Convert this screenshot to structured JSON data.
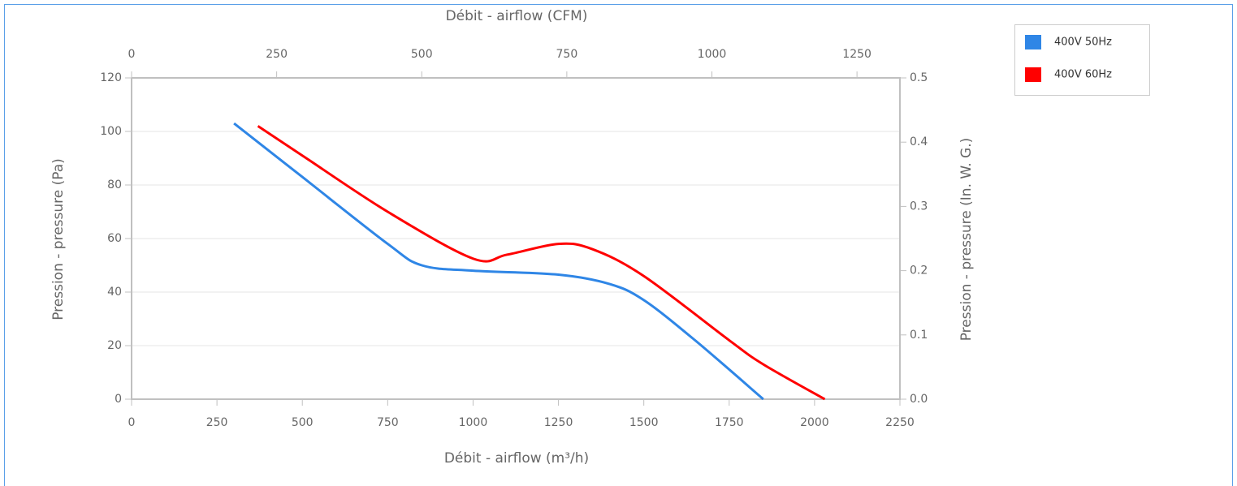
{
  "chart_data": {
    "type": "line",
    "x_label": "Débit - airflow (m³/h)",
    "x2_label": "Débit - airflow (CFM)",
    "y_label": "Pression - pressure (Pa)",
    "y2_label": "Pression - pressure (In. W. G.)",
    "xlim": [
      0,
      2250
    ],
    "xticks": [
      0,
      250,
      500,
      750,
      1000,
      1250,
      1500,
      1750,
      2000,
      2250
    ],
    "x2lim": [
      0,
      1324
    ],
    "x2ticks": [
      0,
      250,
      500,
      750,
      1000,
      1250
    ],
    "ylim": [
      0,
      120
    ],
    "yticks": [
      0,
      20,
      40,
      60,
      80,
      100,
      120
    ],
    "y2lim": [
      0,
      0.5
    ],
    "y2ticks": [
      {
        "value": 0,
        "label": "0.0"
      },
      0.1,
      0.2,
      0.3,
      0.4,
      0.5
    ],
    "grid": true,
    "legend": "right",
    "series": [
      {
        "name": "400V 50Hz",
        "color": "#2f86e6",
        "x": [
          300,
          500,
          750,
          850,
          1000,
          1250,
          1400,
          1500,
          1650,
          1850
        ],
        "values": [
          103,
          83,
          58,
          50,
          48,
          46.5,
          43,
          37,
          22,
          0
        ]
      },
      {
        "name": "400V 60Hz",
        "color": "#ff0000",
        "x": [
          370,
          500,
          750,
          1000,
          1100,
          1250,
          1350,
          1500,
          1750,
          1850,
          2030
        ],
        "values": [
          102,
          91,
          70,
          52.5,
          54,
          58,
          56,
          46,
          22,
          13,
          0
        ]
      }
    ]
  }
}
